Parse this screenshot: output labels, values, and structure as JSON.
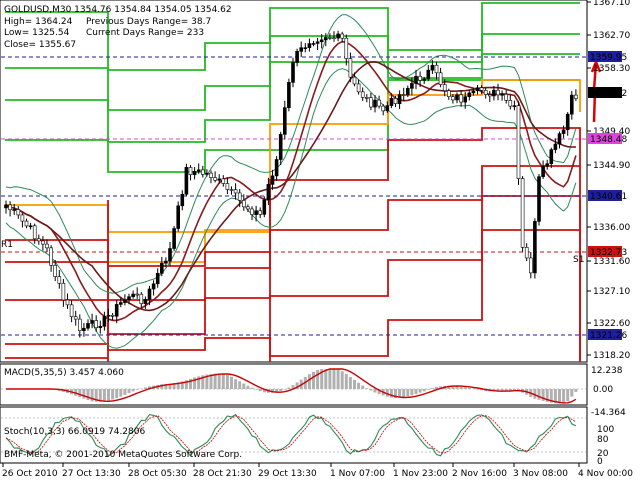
{
  "chart_info": {
    "symbol_line": "GOLDUSD,M30  1354.76 1354.84 1354.05 1354.62",
    "high": "High= 1364.24",
    "low": "Low= 1325.54",
    "close": "Close= 1355.67",
    "prev_range": "Previous Days Range= 38.7",
    "curr_range": "Current Days Range= 233"
  },
  "price_axis": [
    "1367.10",
    "1362.70",
    "1358.30",
    "1354.62",
    "1349.40",
    "1344.90",
    "1340.61",
    "1336.00",
    "1331.60",
    "1327.10",
    "1322.60",
    "1318.20"
  ],
  "price_badges": [
    {
      "text": "1359.95",
      "color": "#1e1e9e"
    },
    {
      "text": "1354.62",
      "color": "#000000"
    },
    {
      "text": "1348.48",
      "color": "#dd44dd"
    },
    {
      "text": "1340.61",
      "color": "#1e1e9e"
    },
    {
      "text": "1332.73",
      "color": "#cc1111"
    },
    {
      "text": "1321.26",
      "color": "#1e1e9e"
    }
  ],
  "level_labels": {
    "left_label": "R1",
    "right_label": "S1"
  },
  "time_axis": [
    "26 Oct 2010",
    "27 Oct 13:30",
    "28 Oct 05:30",
    "28 Oct 21:30",
    "29 Oct 13:30",
    "1 Nov 07:00",
    "1 Nov 23:00",
    "2 Nov 16:00",
    "3 Nov 08:00",
    "4 Nov 00:00"
  ],
  "macd": {
    "label": "MACD(5,35,5) 3.457 4.060",
    "axis": [
      "12.238",
      "0.00",
      "-14.364"
    ]
  },
  "stoch": {
    "label": "Stoch(10,3,3) 66.0919 74.2806",
    "axis": [
      "100",
      "80",
      "20",
      "0"
    ]
  },
  "copyright": "BMF-Meta, © 2001-2010 MetaQuotes Software Corp.",
  "colors": {
    "candle": "#000000",
    "ma_red": "#8b1a1a",
    "bollinger": "#2e8b57",
    "pivot_green": "#22bb22",
    "pivot_red": "#cc1111",
    "pivot_orange": "#ff9900",
    "macd_hist": "#b0b0b0",
    "macd_signal": "#cc0000",
    "stoch_main": "#2e8b57",
    "stoch_signal": "#cc0000"
  }
}
